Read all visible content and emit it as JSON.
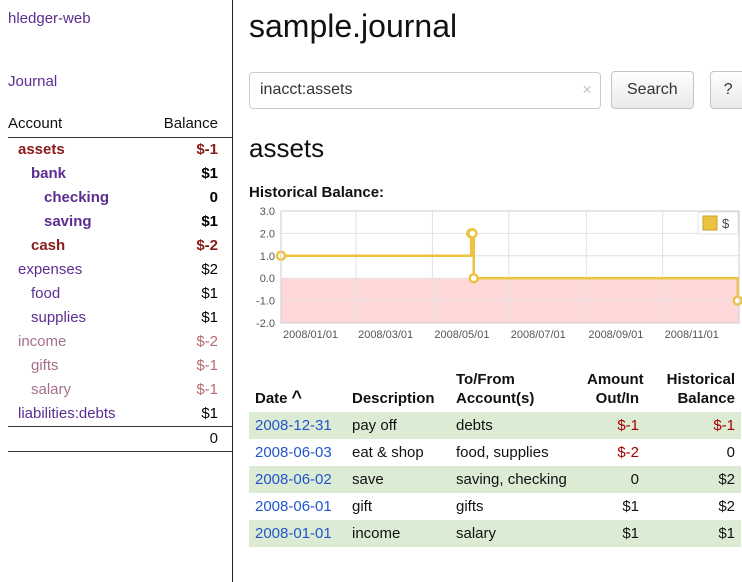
{
  "colors": {
    "link_purple": "#5c2d91",
    "muted_account": "#a5708c",
    "negative_dark": "#8b1a1a",
    "negative": "#a40000",
    "muted_negative": "#b96a6a",
    "date_link": "#2255cc",
    "row_green": "#dcebd4"
  },
  "sidebar": {
    "app_title": "hledger-web",
    "journal_link": "Journal",
    "accounts_header": {
      "account": "Account",
      "balance": "Balance"
    },
    "accounts": [
      {
        "name": "assets",
        "depth": 1,
        "name_class": "strong-neg",
        "balance": "$-1",
        "balance_class": "bal-strong-neg"
      },
      {
        "name": "bank",
        "depth": 2,
        "name_class": "strong",
        "balance": "$1",
        "balance_class": "bal-strong"
      },
      {
        "name": "checking",
        "depth": 3,
        "name_class": "strong",
        "balance": "0",
        "balance_class": "bal-strong"
      },
      {
        "name": "saving",
        "depth": 3,
        "name_class": "strong",
        "balance": "$1",
        "balance_class": "bal-strong"
      },
      {
        "name": "cash",
        "depth": 2,
        "name_class": "strong-neg",
        "balance": "$-2",
        "balance_class": "bal-strong-neg"
      },
      {
        "name": "expenses",
        "depth": 1,
        "name_class": "normal",
        "balance": "$2",
        "balance_class": "bal"
      },
      {
        "name": "food",
        "depth": 2,
        "name_class": "normal",
        "balance": "$1",
        "balance_class": "bal"
      },
      {
        "name": "supplies",
        "depth": 2,
        "name_class": "normal",
        "balance": "$1",
        "balance_class": "bal"
      },
      {
        "name": "income",
        "depth": 1,
        "name_class": "muted",
        "balance": "$-2",
        "balance_class": "bal-muted-neg"
      },
      {
        "name": "gifts",
        "depth": 2,
        "name_class": "muted",
        "balance": "$-1",
        "balance_class": "bal-muted-neg"
      },
      {
        "name": "salary",
        "depth": 2,
        "name_class": "muted",
        "balance": "$-1",
        "balance_class": "bal-muted-neg"
      },
      {
        "name": "liabilities:debts",
        "depth": 1,
        "name_class": "normal",
        "balance": "$1",
        "balance_class": "bal"
      }
    ],
    "total": "0"
  },
  "main": {
    "title": "sample.journal",
    "search": {
      "value": "inacct:assets",
      "clear_icon": "×",
      "search_button": "Search",
      "help_button": "?"
    },
    "section_title": "assets",
    "register": {
      "columns": [
        {
          "lines": [
            "Date"
          ],
          "sort_icon": "^",
          "align": "left"
        },
        {
          "lines": [
            "Description"
          ],
          "align": "left"
        },
        {
          "lines": [
            "To/From",
            "Account(s)"
          ],
          "align": "left"
        },
        {
          "lines": [
            "Amount",
            "Out/In"
          ],
          "align": "right"
        },
        {
          "lines": [
            "Historical",
            "Balance"
          ],
          "align": "right"
        }
      ],
      "rows": [
        {
          "date": "2008-12-31",
          "description": "pay off",
          "accounts": "debts",
          "amount": "$-1",
          "balance": "$-1"
        },
        {
          "date": "2008-06-03",
          "description": "eat & shop",
          "accounts": "food, supplies",
          "amount": "$-2",
          "balance": "0"
        },
        {
          "date": "2008-06-02",
          "description": "save",
          "accounts": "saving, checking",
          "amount": "0",
          "balance": "$2"
        },
        {
          "date": "2008-06-01",
          "description": "gift",
          "accounts": "gifts",
          "amount": "$1",
          "balance": "$2"
        },
        {
          "date": "2008-01-01",
          "description": "income",
          "accounts": "salary",
          "amount": "$1",
          "balance": "$1"
        }
      ]
    }
  },
  "chart_data": {
    "type": "line",
    "title": "Historical Balance:",
    "step": true,
    "grid": true,
    "legend_position": "top-right",
    "line_color": "#edc240",
    "negative_region_color": "#ffd9d9",
    "ylim": [
      -2,
      3
    ],
    "yticks": [
      3,
      2,
      1,
      0,
      -1,
      -2
    ],
    "x_range": [
      "2008-01-01",
      "2009-01-01"
    ],
    "xtick_labels": [
      "2008/01/01",
      "2008/03/01",
      "2008/05/01",
      "2008/07/01",
      "2008/09/01",
      "2008/11/01"
    ],
    "series": [
      {
        "name": "$",
        "points": [
          [
            "2008-01-01",
            1
          ],
          [
            "2008-06-01",
            2
          ],
          [
            "2008-06-02",
            2
          ],
          [
            "2008-06-03",
            0
          ],
          [
            "2008-12-31",
            -1
          ]
        ]
      }
    ]
  }
}
